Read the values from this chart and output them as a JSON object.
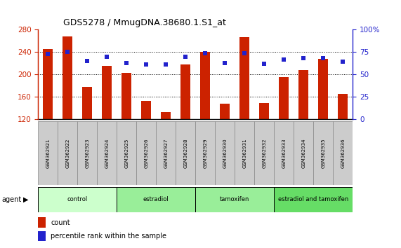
{
  "title": "GDS5278 / MmugDNA.38680.1.S1_at",
  "samples": [
    "GSM362921",
    "GSM362922",
    "GSM362923",
    "GSM362924",
    "GSM362925",
    "GSM362926",
    "GSM362927",
    "GSM362928",
    "GSM362929",
    "GSM362930",
    "GSM362931",
    "GSM362932",
    "GSM362933",
    "GSM362934",
    "GSM362935",
    "GSM362936"
  ],
  "bar_values": [
    246,
    268,
    178,
    215,
    203,
    153,
    132,
    218,
    241,
    148,
    267,
    149,
    195,
    208,
    228,
    165
  ],
  "dot_values": [
    73,
    75,
    65,
    70,
    63,
    61,
    61,
    70,
    74,
    63,
    74,
    62,
    67,
    68,
    68,
    64
  ],
  "bar_color": "#CC2200",
  "dot_color": "#2222CC",
  "ylim_left": [
    120,
    280
  ],
  "ylim_right": [
    0,
    100
  ],
  "yticks_left": [
    120,
    160,
    200,
    240,
    280
  ],
  "yticks_right": [
    0,
    25,
    50,
    75,
    100
  ],
  "group_configs": [
    {
      "start": 0,
      "end": 4,
      "label": "control",
      "color": "#CCFFCC"
    },
    {
      "start": 4,
      "end": 8,
      "label": "estradiol",
      "color": "#99EE99"
    },
    {
      "start": 8,
      "end": 12,
      "label": "tamoxifen",
      "color": "#99EE99"
    },
    {
      "start": 12,
      "end": 16,
      "label": "estradiol and tamoxifen",
      "color": "#66DD66"
    }
  ],
  "legend_count_label": "count",
  "legend_pct_label": "percentile rank within the sample",
  "agent_label": "agent",
  "bar_width": 0.5
}
